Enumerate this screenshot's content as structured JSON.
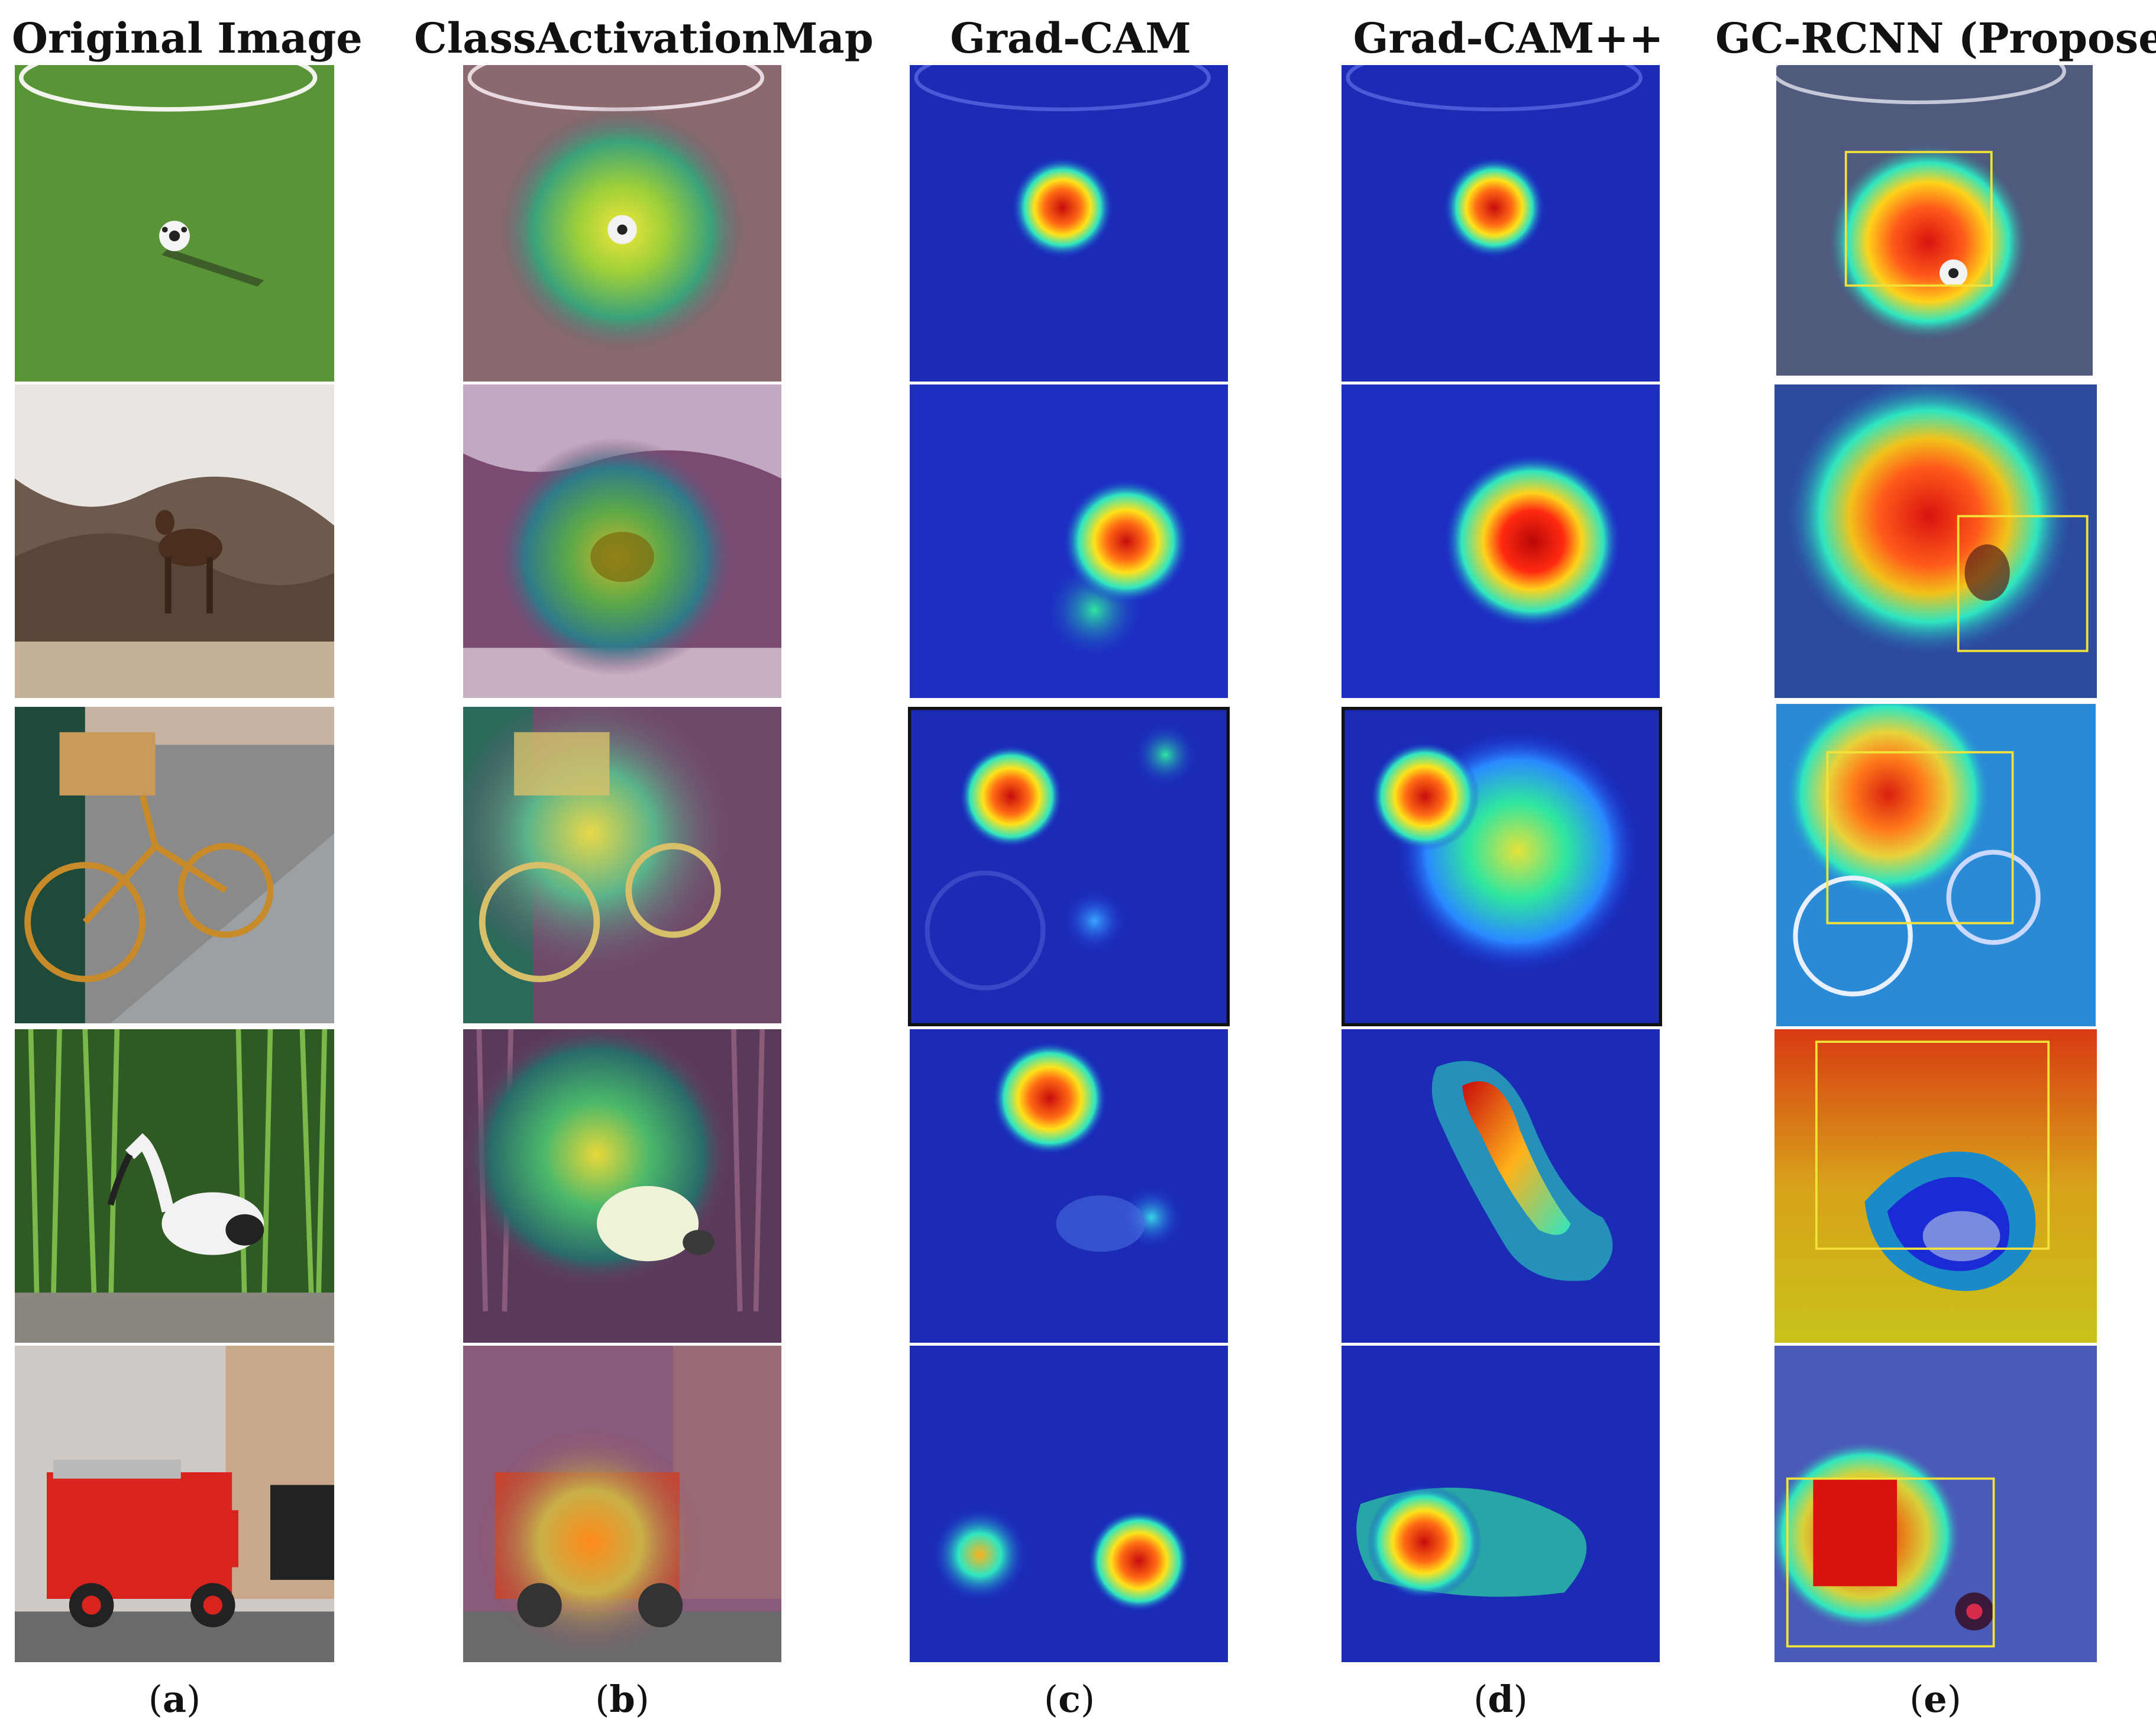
{
  "figure": {
    "columns": [
      {
        "id": "a",
        "header": "Original Image",
        "letter_open": "(",
        "letter": "a",
        "letter_close": ")"
      },
      {
        "id": "b",
        "header": "ClassActivationMap",
        "letter_open": "(",
        "letter": "b",
        "letter_close": ")"
      },
      {
        "id": "c",
        "header": "Grad-CAM",
        "letter_open": "(",
        "letter": "c",
        "letter_close": ")"
      },
      {
        "id": "d",
        "header": "Grad-CAM++",
        "letter_open": "(",
        "letter": "d",
        "letter_close": ")"
      },
      {
        "id": "e",
        "header": "GC-RCNN (Proposed)",
        "letter_open": "(",
        "letter": "e",
        "letter_close": ")"
      }
    ],
    "rows": [
      {
        "subject": "soccer-ball",
        "scene_colors": {
          "base": "#5d9a3a",
          "accent": "#2f2f2f"
        }
      },
      {
        "subject": "deer",
        "scene_colors": {
          "base": "#8c7a6a",
          "accent": "#4a2e1e"
        }
      },
      {
        "subject": "bicycle",
        "scene_colors": {
          "base": "#6f7f8c",
          "accent": "#c98a2a"
        }
      },
      {
        "subject": "ibis-bird",
        "scene_colors": {
          "base": "#3f7a2a",
          "accent": "#f2f2f2"
        }
      },
      {
        "subject": "fire-truck",
        "scene_colors": {
          "base": "#b9b7b2",
          "accent": "#d9231f"
        }
      }
    ],
    "heatmap_colors": {
      "cool": "#1a2bd6",
      "mid": "#2ee6a0",
      "warm": "#ffe21a",
      "hot": "#d60f0f"
    }
  }
}
